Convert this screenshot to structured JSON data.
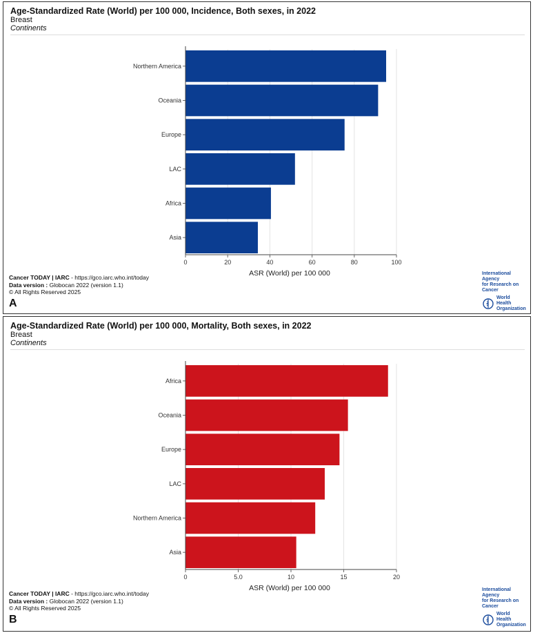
{
  "panels": [
    {
      "title": "Age-Standardized Rate (World) per 100 000, Incidence, Both sexes, in 2022",
      "subtitle": "Breast",
      "group": "Continents",
      "letter": "A",
      "footer": {
        "source_bold": "Cancer TODAY | IARC",
        "source_rest": " - https://gco.iarc.who.int/today",
        "version_bold": "Data version :",
        "version_rest": " Globocan 2022 (version 1.1)",
        "rights": "© All Rights Reserved 2025"
      },
      "logo": {
        "iarc_line1": "International Agency",
        "iarc_line2": "for Research on Cancer",
        "who_line1": "World Health",
        "who_line2": "Organization"
      }
    },
    {
      "title": "Age-Standardized Rate (World) per 100 000, Mortality, Both sexes, in 2022",
      "subtitle": "Breast",
      "group": "Continents",
      "letter": "B",
      "footer": {
        "source_bold": "Cancer TODAY | IARC",
        "source_rest": " - https://gco.iarc.who.int/today",
        "version_bold": "Data version :",
        "version_rest": " Globocan 2022 (version 1.1)",
        "rights": "© All Rights Reserved 2025"
      },
      "logo": {
        "iarc_line1": "International Agency",
        "iarc_line2": "for Research on Cancer",
        "who_line1": "World Health",
        "who_line2": "Organization"
      }
    }
  ],
  "chart_data": [
    {
      "type": "bar",
      "orientation": "horizontal",
      "title": "Age-Standardized Rate (World) per 100 000, Incidence, Both sexes, in 2022",
      "subtitle": "Breast",
      "categories": [
        "Northern America",
        "Oceania",
        "Europe",
        "LAC",
        "Africa",
        "Asia"
      ],
      "values": [
        95.1,
        91.3,
        75.4,
        51.9,
        40.5,
        34.3
      ],
      "xlabel": "ASR (World) per 100 000",
      "ylabel": "",
      "xlim": [
        0,
        100
      ],
      "ticks": [
        "0",
        "20",
        "40",
        "60",
        "80",
        "100"
      ],
      "tick_values": [
        0,
        20,
        40,
        60,
        80,
        100
      ],
      "color": "#0b3d91",
      "grid": true
    },
    {
      "type": "bar",
      "orientation": "horizontal",
      "title": "Age-Standardized Rate (World) per 100 000, Mortality, Both sexes, in 2022",
      "subtitle": "Breast",
      "categories": [
        "Africa",
        "Oceania",
        "Europe",
        "LAC",
        "Northern America",
        "Asia"
      ],
      "values": [
        19.2,
        15.4,
        14.6,
        13.2,
        12.3,
        10.5
      ],
      "xlabel": "ASR (World) per 100 000",
      "ylabel": "",
      "xlim": [
        0,
        20
      ],
      "ticks": [
        "0",
        "5.0",
        "10",
        "15",
        "20"
      ],
      "tick_values": [
        0,
        5,
        10,
        15,
        20
      ],
      "color": "#cc141c",
      "grid": true
    }
  ]
}
